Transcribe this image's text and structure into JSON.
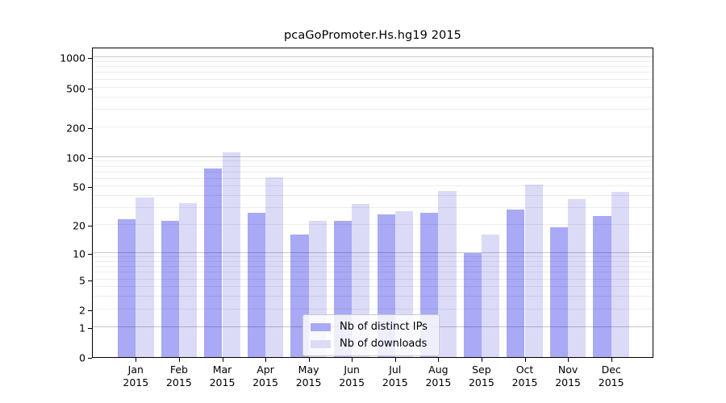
{
  "chart_data": {
    "type": "bar",
    "title": "pcaGoPromoter.Hs.hg19 2015",
    "categories": [
      "Jan",
      "Feb",
      "Mar",
      "Apr",
      "May",
      "Jun",
      "Jul",
      "Aug",
      "Sep",
      "Oct",
      "Nov",
      "Dec"
    ],
    "x_tick_year": "2015",
    "series": [
      {
        "name": "Nb of distinct IPs",
        "color": "#a9a9f6",
        "values": [
          23,
          22,
          76,
          27,
          16,
          22,
          26,
          27,
          10,
          29,
          19,
          25
        ]
      },
      {
        "name": "Nb of downloads",
        "color": "#dbdbf8",
        "values": [
          39,
          34,
          112,
          62,
          22,
          33,
          28,
          45,
          16,
          52,
          37,
          44
        ]
      }
    ],
    "xlabel": "",
    "ylabel": "",
    "y_ticks": [
      0,
      1,
      2,
      5,
      10,
      20,
      50,
      100,
      200,
      500,
      1000
    ],
    "y_scale": "log10(1+value)",
    "ylim": [
      0,
      1280
    ],
    "grid": {
      "major": [
        1,
        10,
        100,
        1000
      ],
      "minor": [
        2,
        3,
        4,
        5,
        6,
        7,
        8,
        9,
        20,
        30,
        40,
        50,
        60,
        70,
        80,
        90,
        200,
        300,
        400,
        500,
        600,
        700,
        800,
        900
      ]
    },
    "legend": {
      "position": "lower-center",
      "entries": [
        "Nb of distinct IPs",
        "Nb of downloads"
      ]
    },
    "colors": {
      "axis": "#000000",
      "grid_major": "#c9c9c9",
      "grid_minor": "#ededed",
      "background": "#ffffff",
      "text": "#000000"
    }
  }
}
